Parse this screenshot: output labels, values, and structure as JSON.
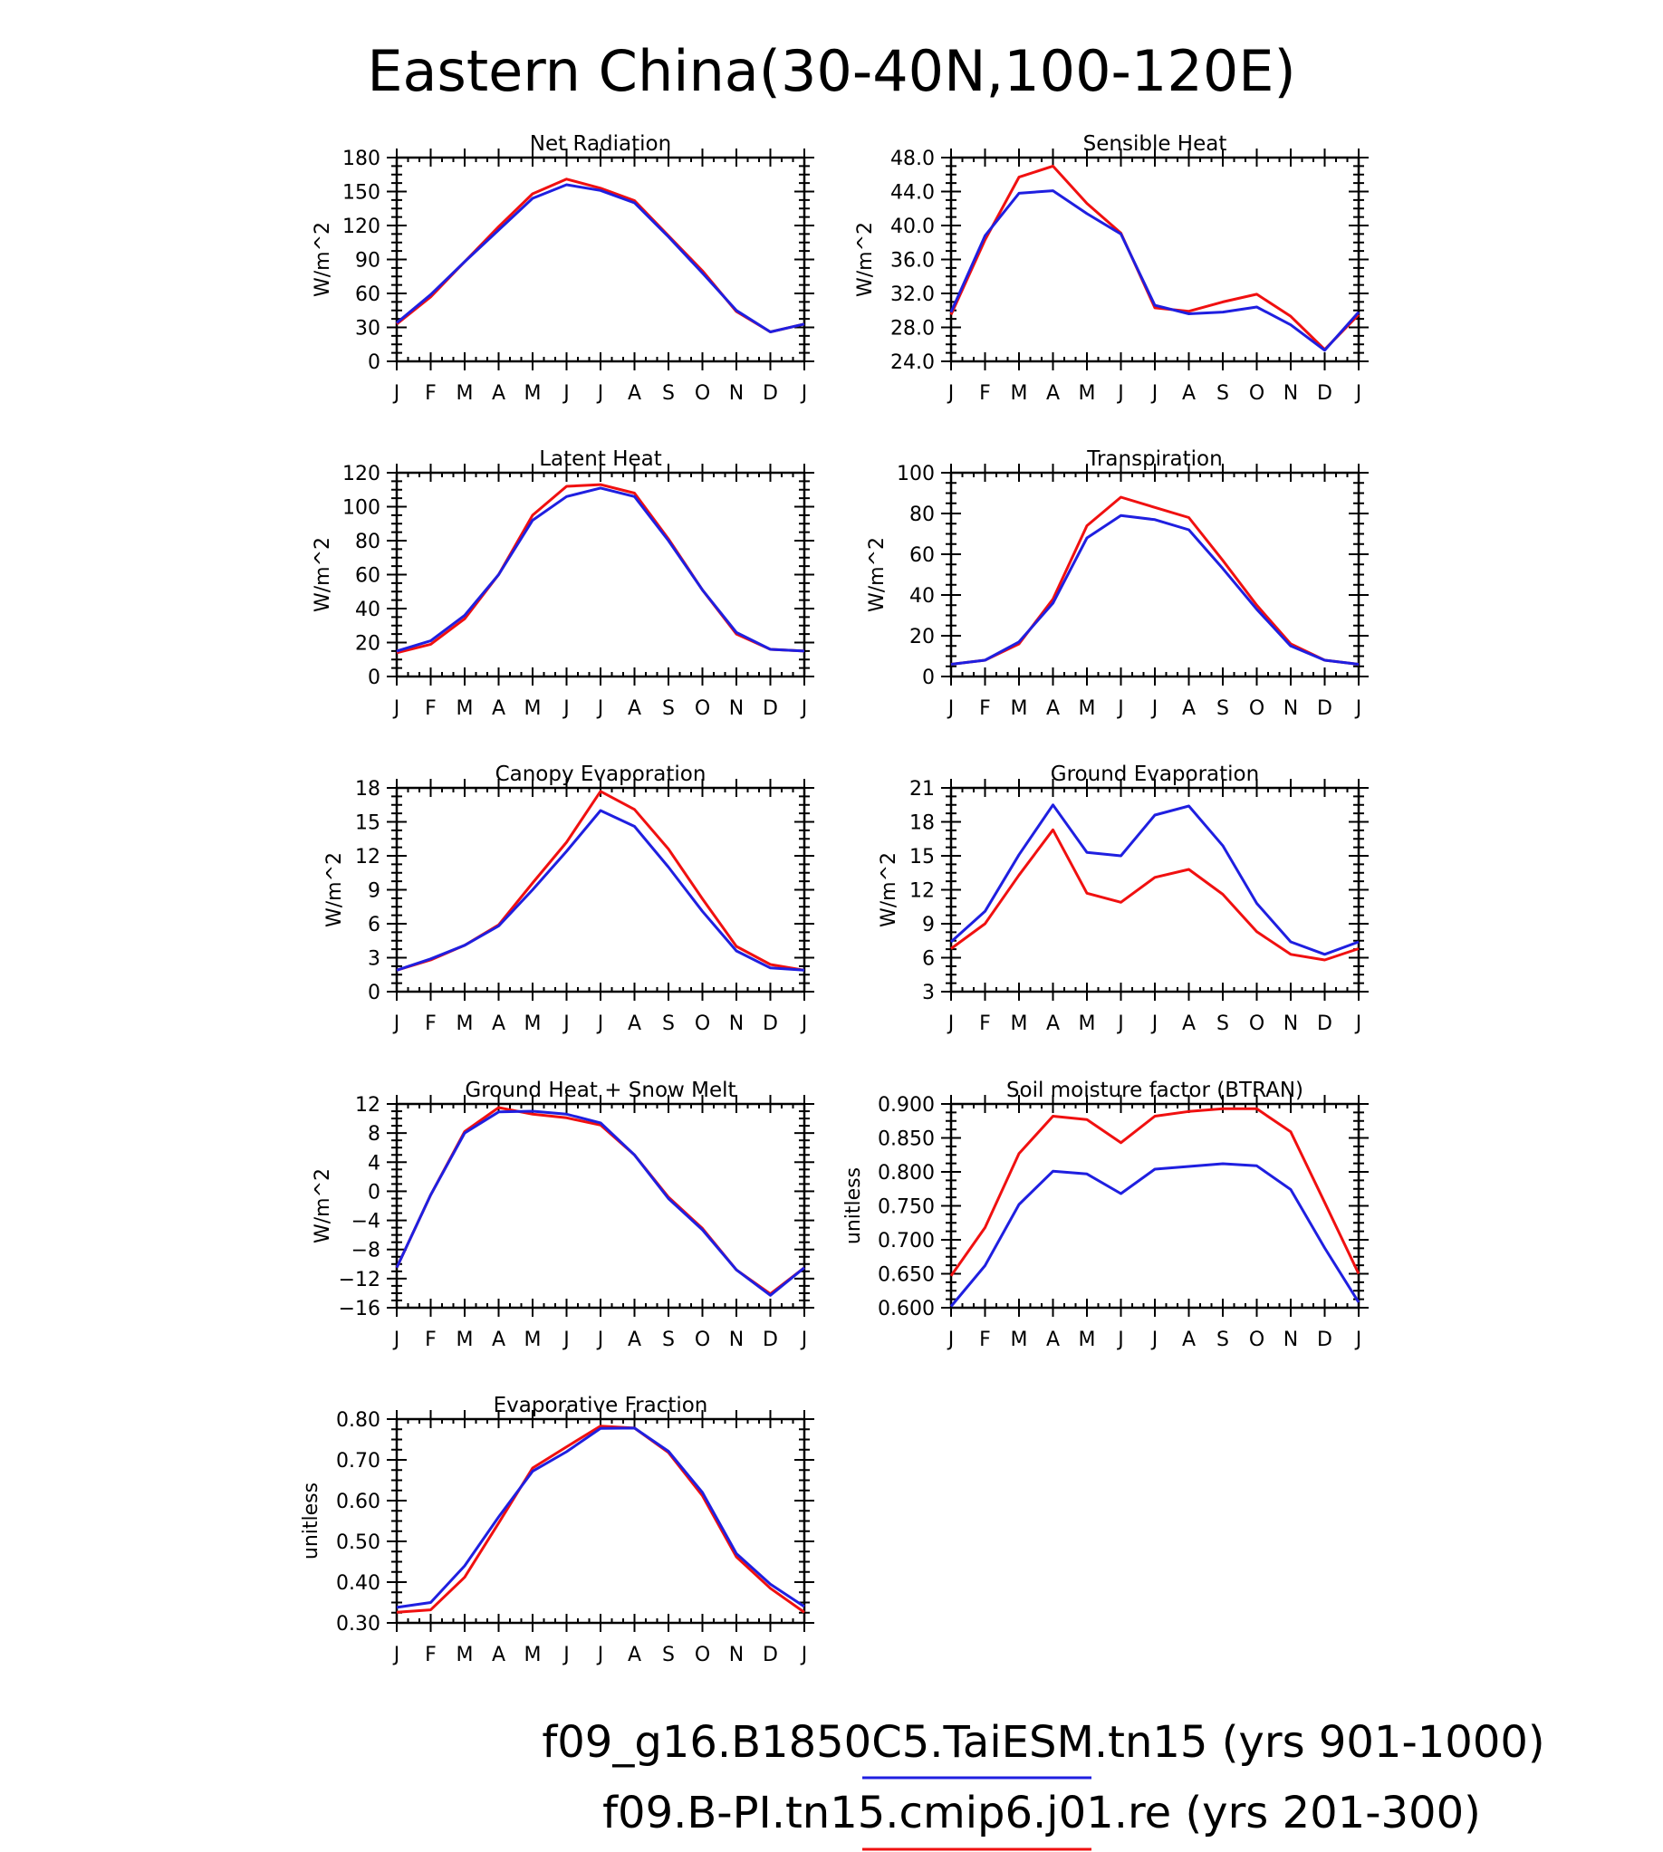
{
  "figure": {
    "title": "Eastern China(30-40N,100-120E)",
    "legend": [
      {
        "label": "f09_g16.B1850C5.TaiESM.tn15 (yrs 901-1000)",
        "color": "#1f1fe0"
      },
      {
        "label": "f09.B-PI.tn15.cmip6.j01.re (yrs 201-300)",
        "color": "#f01010"
      }
    ]
  },
  "chart_data": [
    {
      "type": "line",
      "title": "Net Radiation",
      "ylabel": "W/m^2",
      "categories": [
        "J",
        "F",
        "M",
        "A",
        "M",
        "J",
        "J",
        "A",
        "S",
        "O",
        "N",
        "D",
        "J"
      ],
      "ylim": [
        0,
        180
      ],
      "yticks": [
        0,
        30,
        60,
        90,
        120,
        150,
        180
      ],
      "ytick_labels": [
        "0",
        "30",
        "60",
        "90",
        "120",
        "150",
        "180"
      ],
      "series": [
        {
          "name": "f09_g16.B1850C5.TaiESM.tn15 (yrs 901-1000)",
          "color": "#1f1fe0",
          "values": [
            34,
            59,
            88,
            116,
            144,
            156,
            151,
            140,
            110,
            78,
            45,
            26,
            33
          ]
        },
        {
          "name": "f09.B-PI.tn15.cmip6.j01.re (yrs 201-300)",
          "color": "#f01010",
          "values": [
            33,
            57,
            88,
            119,
            148,
            161,
            153,
            142,
            111,
            80,
            44,
            26,
            33
          ]
        }
      ]
    },
    {
      "type": "line",
      "title": "Sensible Heat",
      "ylabel": "W/m^2",
      "categories": [
        "J",
        "F",
        "M",
        "A",
        "M",
        "J",
        "J",
        "A",
        "S",
        "O",
        "N",
        "D",
        "J"
      ],
      "ylim": [
        24,
        48
      ],
      "yticks": [
        24,
        28,
        32,
        36,
        40,
        44,
        48
      ],
      "ytick_labels": [
        "24.0",
        "28.0",
        "32.0",
        "36.0",
        "40.0",
        "44.0",
        "48.0"
      ],
      "series": [
        {
          "name": "f09_g16.B1850C5.TaiESM.tn15 (yrs 901-1000)",
          "color": "#1f1fe0",
          "values": [
            29.8,
            38.8,
            43.8,
            44.1,
            41.4,
            39.0,
            30.6,
            29.6,
            29.8,
            30.4,
            28.3,
            25.3,
            29.8
          ]
        },
        {
          "name": "f09.B-PI.tn15.cmip6.j01.re (yrs 201-300)",
          "color": "#f01010",
          "values": [
            29.5,
            38.3,
            45.7,
            47.0,
            42.6,
            39.1,
            30.3,
            29.9,
            31.0,
            31.9,
            29.3,
            25.4,
            29.5
          ]
        }
      ]
    },
    {
      "type": "line",
      "title": "Latent Heat",
      "ylabel": "W/m^2",
      "categories": [
        "J",
        "F",
        "M",
        "A",
        "M",
        "J",
        "J",
        "A",
        "S",
        "O",
        "N",
        "D",
        "J"
      ],
      "ylim": [
        0,
        120
      ],
      "yticks": [
        0,
        20,
        40,
        60,
        80,
        100,
        120
      ],
      "ytick_labels": [
        "0",
        "20",
        "40",
        "60",
        "80",
        "100",
        "120"
      ],
      "series": [
        {
          "name": "f09_g16.B1850C5.TaiESM.tn15 (yrs 901-1000)",
          "color": "#1f1fe0",
          "values": [
            15,
            21,
            36,
            60,
            92,
            106,
            111,
            106,
            80,
            51,
            26,
            16,
            15
          ]
        },
        {
          "name": "f09.B-PI.tn15.cmip6.j01.re (yrs 201-300)",
          "color": "#f01010",
          "values": [
            14,
            19,
            34,
            60,
            95,
            112,
            113,
            108,
            81,
            51,
            25,
            16,
            15
          ]
        }
      ]
    },
    {
      "type": "line",
      "title": "Transpiration",
      "ylabel": "W/m^2",
      "categories": [
        "J",
        "F",
        "M",
        "A",
        "M",
        "J",
        "J",
        "A",
        "S",
        "O",
        "N",
        "D",
        "J"
      ],
      "ylim": [
        0,
        100
      ],
      "yticks": [
        0,
        20,
        40,
        60,
        80,
        100
      ],
      "ytick_labels": [
        "0",
        "20",
        "40",
        "60",
        "80",
        "100"
      ],
      "series": [
        {
          "name": "f09_g16.B1850C5.TaiESM.tn15 (yrs 901-1000)",
          "color": "#1f1fe0",
          "values": [
            6,
            8,
            17,
            36,
            68,
            79,
            77,
            72,
            53,
            33,
            15,
            8,
            6
          ]
        },
        {
          "name": "f09.B-PI.tn15.cmip6.j01.re (yrs 201-300)",
          "color": "#f01010",
          "values": [
            6,
            8,
            16,
            38,
            74,
            88,
            83,
            78,
            57,
            35,
            16,
            8,
            6
          ]
        }
      ]
    },
    {
      "type": "line",
      "title": "Canopy Evaporation",
      "ylabel": "W/m^2",
      "categories": [
        "J",
        "F",
        "M",
        "A",
        "M",
        "J",
        "J",
        "A",
        "S",
        "O",
        "N",
        "D",
        "J"
      ],
      "ylim": [
        0,
        18
      ],
      "yticks": [
        0,
        3,
        6,
        9,
        12,
        15,
        18
      ],
      "ytick_labels": [
        "0",
        "3",
        "6",
        "9",
        "12",
        "15",
        "18"
      ],
      "series": [
        {
          "name": "f09_g16.B1850C5.TaiESM.tn15 (yrs 901-1000)",
          "color": "#1f1fe0",
          "values": [
            1.9,
            2.9,
            4.1,
            5.8,
            9.0,
            12.4,
            16.0,
            14.6,
            11.0,
            7.1,
            3.6,
            2.1,
            1.9
          ]
        },
        {
          "name": "f09.B-PI.tn15.cmip6.j01.re (yrs 201-300)",
          "color": "#f01010",
          "values": [
            1.9,
            2.8,
            4.1,
            5.9,
            9.6,
            13.2,
            17.7,
            16.1,
            12.6,
            8.2,
            4.0,
            2.4,
            1.9
          ]
        }
      ]
    },
    {
      "type": "line",
      "title": "Ground Evaporation",
      "ylabel": "W/m^2",
      "categories": [
        "J",
        "F",
        "M",
        "A",
        "M",
        "J",
        "J",
        "A",
        "S",
        "O",
        "N",
        "D",
        "J"
      ],
      "ylim": [
        3,
        21
      ],
      "yticks": [
        3,
        6,
        9,
        12,
        15,
        18,
        21
      ],
      "ytick_labels": [
        "3",
        "6",
        "9",
        "12",
        "15",
        "18",
        "21"
      ],
      "series": [
        {
          "name": "f09_g16.B1850C5.TaiESM.tn15 (yrs 901-1000)",
          "color": "#1f1fe0",
          "values": [
            7.4,
            10.1,
            15.1,
            19.5,
            15.3,
            15.0,
            18.6,
            19.4,
            15.9,
            10.8,
            7.4,
            6.3,
            7.4
          ]
        },
        {
          "name": "f09.B-PI.tn15.cmip6.j01.re (yrs 201-300)",
          "color": "#f01010",
          "values": [
            6.8,
            9.0,
            13.3,
            17.3,
            11.7,
            10.9,
            13.1,
            13.8,
            11.6,
            8.3,
            6.3,
            5.8,
            6.8
          ]
        }
      ]
    },
    {
      "type": "line",
      "title": "Ground Heat + Snow Melt",
      "ylabel": "W/m^2",
      "categories": [
        "J",
        "F",
        "M",
        "A",
        "M",
        "J",
        "J",
        "A",
        "S",
        "O",
        "N",
        "D",
        "J"
      ],
      "ylim": [
        -16,
        12
      ],
      "yticks": [
        -16,
        -12,
        -8,
        -4,
        0,
        4,
        8,
        12
      ],
      "ytick_labels": [
        "−16",
        "−12",
        "−8",
        "−4",
        "0",
        "4",
        "8",
        "12"
      ],
      "series": [
        {
          "name": "f09_g16.B1850C5.TaiESM.tn15 (yrs 901-1000)",
          "color": "#1f1fe0",
          "values": [
            -10.5,
            -0.5,
            8.0,
            10.9,
            11.0,
            10.6,
            9.4,
            5.0,
            -1.0,
            -5.3,
            -10.8,
            -14.3,
            -10.5
          ]
        },
        {
          "name": "f09.B-PI.tn15.cmip6.j01.re (yrs 201-300)",
          "color": "#f01010",
          "values": [
            -10.5,
            -0.5,
            8.2,
            11.5,
            10.6,
            10.1,
            9.1,
            5.0,
            -0.8,
            -5.1,
            -10.8,
            -14.1,
            -10.5
          ]
        }
      ]
    },
    {
      "type": "line",
      "title": "Soil moisture factor (BTRAN)",
      "ylabel": "unitless",
      "categories": [
        "J",
        "F",
        "M",
        "A",
        "M",
        "J",
        "J",
        "A",
        "S",
        "O",
        "N",
        "D",
        "J"
      ],
      "ylim": [
        0.6,
        0.9
      ],
      "yticks": [
        0.6,
        0.65,
        0.7,
        0.75,
        0.8,
        0.85,
        0.9
      ],
      "ytick_labels": [
        "0.600",
        "0.650",
        "0.700",
        "0.750",
        "0.800",
        "0.850",
        "0.900"
      ],
      "series": [
        {
          "name": "f09_g16.B1850C5.TaiESM.tn15 (yrs 901-1000)",
          "color": "#1f1fe0",
          "values": [
            0.602,
            0.662,
            0.752,
            0.801,
            0.797,
            0.768,
            0.804,
            0.808,
            0.812,
            0.809,
            0.774,
            0.688,
            0.608
          ]
        },
        {
          "name": "f09.B-PI.tn15.cmip6.j01.re (yrs 201-300)",
          "color": "#f01010",
          "values": [
            0.647,
            0.718,
            0.827,
            0.882,
            0.877,
            0.843,
            0.882,
            0.889,
            0.893,
            0.893,
            0.859,
            0.755,
            0.65
          ]
        }
      ]
    },
    {
      "type": "line",
      "title": "Evaporative Fraction",
      "ylabel": "unitless",
      "categories": [
        "J",
        "F",
        "M",
        "A",
        "M",
        "J",
        "J",
        "A",
        "S",
        "O",
        "N",
        "D",
        "J"
      ],
      "ylim": [
        0.3,
        0.8
      ],
      "yticks": [
        0.3,
        0.4,
        0.5,
        0.6,
        0.7,
        0.8
      ],
      "ytick_labels": [
        "0.30",
        "0.40",
        "0.50",
        "0.60",
        "0.70",
        "0.80"
      ],
      "series": [
        {
          "name": "f09_g16.B1850C5.TaiESM.tn15 (yrs 901-1000)",
          "color": "#1f1fe0",
          "values": [
            0.338,
            0.35,
            0.44,
            0.56,
            0.672,
            0.72,
            0.777,
            0.778,
            0.721,
            0.62,
            0.47,
            0.395,
            0.34
          ]
        },
        {
          "name": "f09.B-PI.tn15.cmip6.j01.re (yrs 201-300)",
          "color": "#f01010",
          "values": [
            0.326,
            0.332,
            0.412,
            0.545,
            0.68,
            0.732,
            0.783,
            0.778,
            0.718,
            0.612,
            0.462,
            0.385,
            0.326
          ]
        }
      ]
    }
  ]
}
